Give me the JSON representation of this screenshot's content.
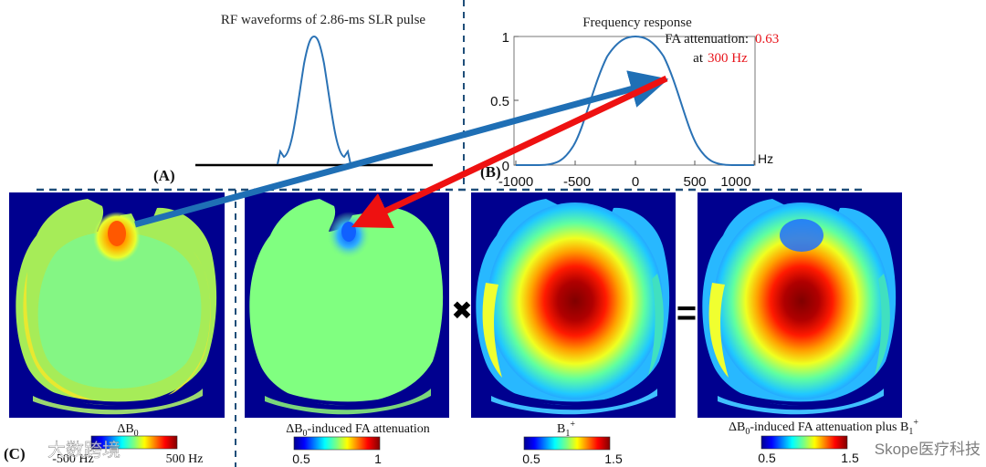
{
  "panelA": {
    "title": "RF waveforms  of 2.86-ms SLR pulse",
    "label": "(A)"
  },
  "panelB": {
    "title": "Frequency response",
    "label": "(B)",
    "fa_text": "FA attenuation:",
    "fa_value": "0.63",
    "at_text": "at",
    "at_value": "300 Hz",
    "x_unit": "Hz",
    "x_ticks": [
      "-1000",
      "-500",
      "0",
      "500",
      "1000"
    ],
    "y_ticks": [
      "1",
      "0.5",
      "0"
    ]
  },
  "panelC": {
    "label": "(C)",
    "maps": [
      {
        "caption_main": "ΔB",
        "caption_sub": "0",
        "caption_rest": "",
        "cb_min": "-500 Hz",
        "cb_max": "500 Hz"
      },
      {
        "caption_main": "ΔB",
        "caption_sub": "0",
        "caption_rest": "-induced FA attenuation",
        "cb_min": "0.5",
        "cb_max": "1"
      },
      {
        "caption_main": "B",
        "caption_sub": "1",
        "caption_sup": "+",
        "caption_rest": "",
        "cb_min": "0.5",
        "cb_max": "1.5"
      },
      {
        "caption_main": "ΔB",
        "caption_sub": "0",
        "caption_rest": "-induced FA attenuation plus B",
        "caption_sub2": "1",
        "caption_sup": "+",
        "cb_min": "0.5",
        "cb_max": "1.5"
      }
    ],
    "operators": {
      "times": "✖",
      "equals": "="
    }
  },
  "watermark_left": "大数跨境",
  "watermark_right": "Skope医疗科技",
  "colors": {
    "blue_arrow": "#1f6fb5",
    "red_arrow": "#ee1111",
    "dash": "#1f4e79",
    "curve": "#2a72b5",
    "bg_map": "#00008f",
    "red_text": "#e8141b"
  }
}
